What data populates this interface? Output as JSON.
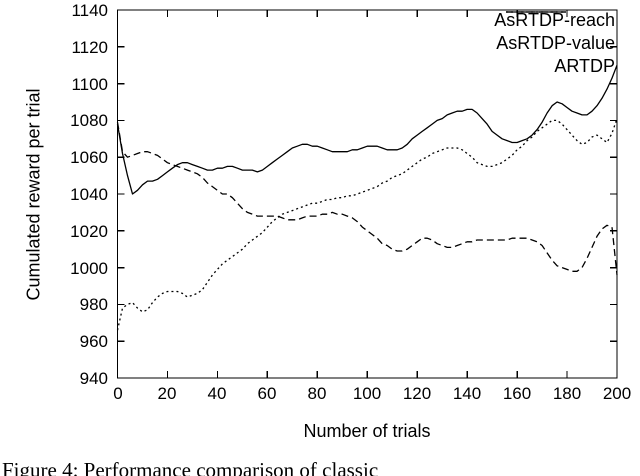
{
  "figure": {
    "caption_partial": "Figure 4: Performance comparison of classic",
    "background": "#ffffff",
    "line_color": "#000000"
  },
  "chart_data": {
    "type": "line",
    "title": "",
    "xlabel": "Number of trials",
    "ylabel": "Cumulated reward per trial",
    "xlim": [
      0,
      200
    ],
    "ylim": [
      940,
      1140
    ],
    "x_ticks": [
      0,
      20,
      40,
      60,
      80,
      100,
      120,
      140,
      160,
      180,
      200
    ],
    "y_ticks": [
      940,
      960,
      980,
      1000,
      1020,
      1040,
      1060,
      1080,
      1100,
      1120,
      1140
    ],
    "grid": false,
    "legend_position": "top-right-inside",
    "x_start": 0,
    "x_step": 2,
    "series": [
      {
        "name": "AsRTDP-reach",
        "style": "solid",
        "values": [
          1078,
          1062,
          1050,
          1040,
          1042,
          1045,
          1047,
          1047,
          1048,
          1050,
          1052,
          1054,
          1056,
          1057,
          1057,
          1056,
          1055,
          1054,
          1053,
          1053,
          1054,
          1054,
          1055,
          1055,
          1054,
          1053,
          1053,
          1053,
          1052,
          1053,
          1055,
          1057,
          1059,
          1061,
          1063,
          1065,
          1066,
          1067,
          1067,
          1066,
          1066,
          1065,
          1064,
          1063,
          1063,
          1063,
          1063,
          1064,
          1064,
          1065,
          1066,
          1066,
          1066,
          1065,
          1064,
          1064,
          1064,
          1065,
          1067,
          1070,
          1072,
          1074,
          1076,
          1078,
          1080,
          1081,
          1083,
          1084,
          1085,
          1085,
          1086,
          1086,
          1084,
          1081,
          1078,
          1074,
          1072,
          1070,
          1069,
          1068,
          1068,
          1069,
          1070,
          1072,
          1075,
          1079,
          1084,
          1088,
          1090,
          1089,
          1087,
          1085,
          1084,
          1083,
          1083,
          1085,
          1088,
          1092,
          1097,
          1103,
          1110
        ]
      },
      {
        "name": "AsRTDP-value",
        "style": "dotted",
        "values": [
          966,
          978,
          980,
          981,
          978,
          976,
          977,
          981,
          984,
          986,
          987,
          987,
          987,
          986,
          984,
          985,
          986,
          988,
          992,
          996,
          999,
          1002,
          1004,
          1006,
          1008,
          1010,
          1013,
          1015,
          1017,
          1019,
          1022,
          1025,
          1027,
          1029,
          1030,
          1031,
          1032,
          1033,
          1034,
          1035,
          1035,
          1036,
          1037,
          1037,
          1038,
          1038,
          1039,
          1039,
          1040,
          1041,
          1042,
          1043,
          1044,
          1046,
          1047,
          1049,
          1050,
          1051,
          1053,
          1055,
          1057,
          1059,
          1060,
          1062,
          1063,
          1064,
          1065,
          1065,
          1065,
          1064,
          1062,
          1060,
          1057,
          1056,
          1055,
          1055,
          1056,
          1057,
          1059,
          1061,
          1064,
          1066,
          1069,
          1071,
          1074,
          1076,
          1078,
          1080,
          1080,
          1078,
          1075,
          1072,
          1069,
          1067,
          1068,
          1071,
          1072,
          1070,
          1068,
          1073,
          1081
        ]
      },
      {
        "name": "ARTDP",
        "style": "dashed",
        "values": [
          1079,
          1063,
          1060,
          1061,
          1062,
          1063,
          1063,
          1062,
          1061,
          1059,
          1057,
          1056,
          1055,
          1054,
          1053,
          1052,
          1051,
          1049,
          1046,
          1044,
          1042,
          1040,
          1040,
          1038,
          1035,
          1032,
          1030,
          1029,
          1028,
          1028,
          1028,
          1028,
          1028,
          1027,
          1026,
          1026,
          1026,
          1027,
          1028,
          1028,
          1028,
          1029,
          1029,
          1030,
          1029,
          1029,
          1028,
          1027,
          1025,
          1022,
          1020,
          1018,
          1016,
          1013,
          1012,
          1010,
          1009,
          1009,
          1010,
          1012,
          1014,
          1016,
          1016,
          1015,
          1013,
          1012,
          1011,
          1011,
          1012,
          1013,
          1014,
          1014,
          1015,
          1015,
          1015,
          1015,
          1015,
          1015,
          1015,
          1016,
          1016,
          1016,
          1016,
          1015,
          1014,
          1012,
          1008,
          1004,
          1001,
          1000,
          999,
          998,
          998,
          1000,
          1005,
          1011,
          1017,
          1021,
          1023,
          1022,
          996
        ]
      }
    ]
  }
}
